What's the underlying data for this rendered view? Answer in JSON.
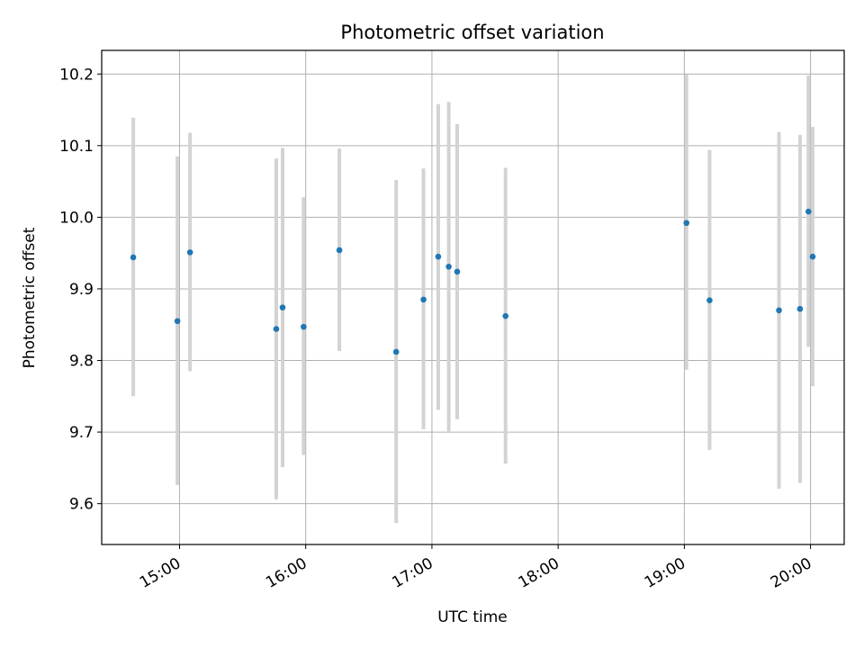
{
  "chart_data": {
    "type": "scatter",
    "title": "Photometric offset variation",
    "xlabel": "UTC time",
    "ylabel": "Photometric offset",
    "xlim": [
      "14:23",
      "20:16"
    ],
    "ylim": [
      9.543,
      10.233
    ],
    "x_ticks": [
      "15:00",
      "16:00",
      "17:00",
      "18:00",
      "19:00",
      "20:00"
    ],
    "y_ticks": [
      9.6,
      9.7,
      9.8,
      9.9,
      10.0,
      10.1,
      10.2
    ],
    "y_tick_labels": [
      "9.6",
      "9.7",
      "9.8",
      "9.9",
      "10.0",
      "10.1",
      "10.2"
    ],
    "grid": true,
    "colors": {
      "points": "#1f77b4",
      "error_bars": "#d3d3d3",
      "grid": "#b0b0b0"
    },
    "points": [
      {
        "x": "14:38",
        "y": 9.944,
        "ylow": 9.75,
        "yhigh": 10.139
      },
      {
        "x": "14:59",
        "y": 9.855,
        "ylow": 9.626,
        "yhigh": 10.085
      },
      {
        "x": "15:05",
        "y": 9.951,
        "ylow": 9.785,
        "yhigh": 10.118
      },
      {
        "x": "15:46",
        "y": 9.844,
        "ylow": 9.606,
        "yhigh": 10.082
      },
      {
        "x": "15:49",
        "y": 9.874,
        "ylow": 9.651,
        "yhigh": 10.097
      },
      {
        "x": "15:59",
        "y": 9.847,
        "ylow": 9.668,
        "yhigh": 10.028
      },
      {
        "x": "16:16",
        "y": 9.954,
        "ylow": 9.813,
        "yhigh": 10.096
      },
      {
        "x": "16:43",
        "y": 9.812,
        "ylow": 9.573,
        "yhigh": 10.052
      },
      {
        "x": "16:56",
        "y": 9.885,
        "ylow": 9.704,
        "yhigh": 10.068
      },
      {
        "x": "17:03",
        "y": 9.945,
        "ylow": 9.731,
        "yhigh": 10.158
      },
      {
        "x": "17:08",
        "y": 9.931,
        "ylow": 9.701,
        "yhigh": 10.161
      },
      {
        "x": "17:12",
        "y": 9.924,
        "ylow": 9.718,
        "yhigh": 10.13
      },
      {
        "x": "17:35",
        "y": 9.862,
        "ylow": 9.656,
        "yhigh": 10.069
      },
      {
        "x": "19:01",
        "y": 9.992,
        "ylow": 9.787,
        "yhigh": 10.199
      },
      {
        "x": "19:12",
        "y": 9.884,
        "ylow": 9.675,
        "yhigh": 10.094
      },
      {
        "x": "19:45",
        "y": 9.87,
        "ylow": 9.621,
        "yhigh": 10.119
      },
      {
        "x": "19:55",
        "y": 9.872,
        "ylow": 9.629,
        "yhigh": 10.115
      },
      {
        "x": "19:59",
        "y": 10.008,
        "ylow": 9.819,
        "yhigh": 10.198
      },
      {
        "x": "20:01",
        "y": 9.945,
        "ylow": 9.764,
        "yhigh": 10.126
      }
    ]
  }
}
